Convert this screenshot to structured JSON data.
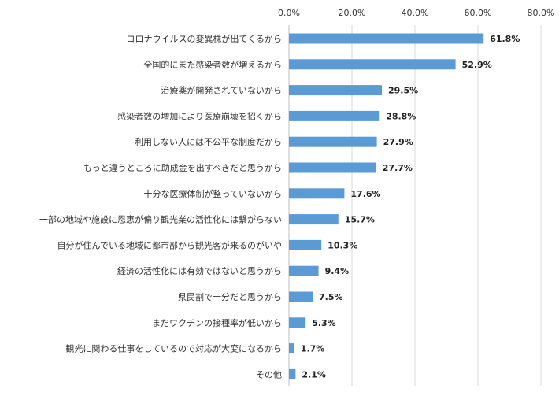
{
  "chart_data": {
    "type": "bar",
    "orientation": "horizontal",
    "title": "",
    "xlabel": "",
    "ylabel": "",
    "xlim": [
      0,
      80
    ],
    "ticks": [
      0,
      20,
      40,
      60,
      80
    ],
    "tick_labels": [
      "0.0%",
      "20.0%",
      "40.0%",
      "60.0%",
      "80.0%"
    ],
    "grid": true,
    "bar_color": "#5b9bd5",
    "categories": [
      "コロナウイルスの変異株が出てくるから",
      "全国的にまた感染者数が増えるから",
      "治療薬が開発されていないから",
      "感染者数の増加により医療崩壊を招くから",
      "利用しない人には不公平な制度だから",
      "もっと違うところに助成金を出すべきだと思うから",
      "十分な医療体制が整っていないから",
      "一部の地域や施設に恩恵が偏り観光業の活性化には繋がらない",
      "自分が住んでいる地域に都市部から観光客が来るのがいや",
      "経済の活性化には有効ではないと思うから",
      "県民割で十分だと思うから",
      "まだワクチンの接種率が低いから",
      "観光に関わる仕事をしているので対応が大変になるから",
      "その他"
    ],
    "values": [
      61.8,
      52.9,
      29.5,
      28.8,
      27.9,
      27.7,
      17.6,
      15.7,
      10.3,
      9.4,
      7.5,
      5.3,
      1.7,
      2.1
    ],
    "value_labels": [
      "61.8%",
      "52.9%",
      "29.5%",
      "28.8%",
      "27.9%",
      "27.7%",
      "17.6%",
      "15.7%",
      "10.3%",
      "9.4%",
      "7.5%",
      "5.3%",
      "1.7%",
      "2.1%"
    ]
  }
}
